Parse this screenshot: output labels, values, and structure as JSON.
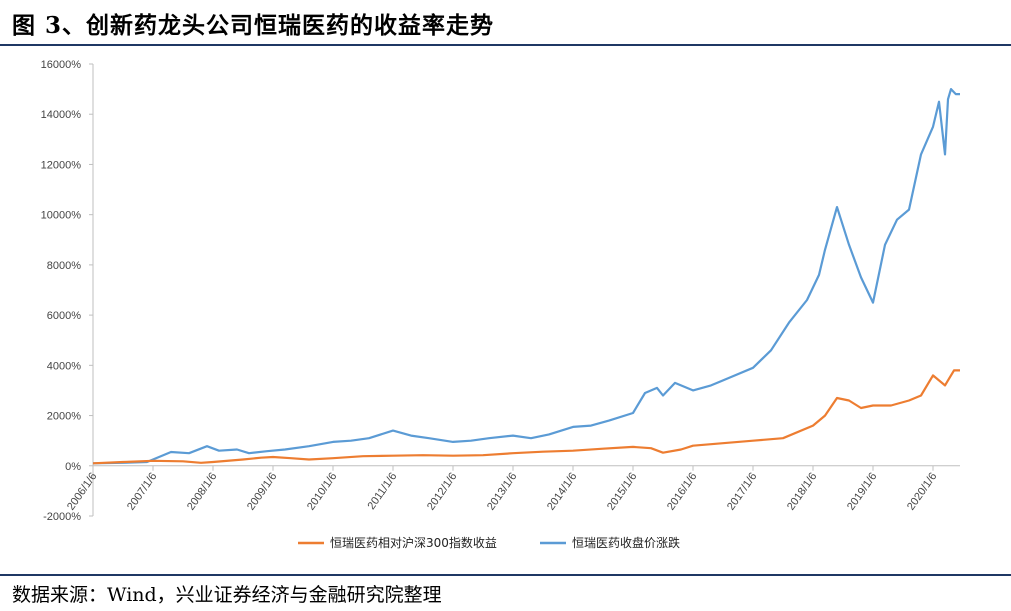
{
  "figure_title": "图 3、创新药龙头公司恒瑞医药的收益率走势",
  "source_note": "数据来源：Wind，兴业证券经济与金融研究院整理",
  "chart_data": {
    "type": "line",
    "title": "",
    "xlabel": "",
    "ylabel": "",
    "ylim": [
      -2000,
      16000
    ],
    "y_ticks": [
      -2000,
      0,
      2000,
      4000,
      6000,
      8000,
      10000,
      12000,
      14000,
      16000
    ],
    "y_tick_labels": [
      "-2000%",
      "0%",
      "2000%",
      "4000%",
      "6000%",
      "8000%",
      "10000%",
      "12000%",
      "14000%",
      "16000%"
    ],
    "x_tick_labels": [
      "2006/1/6",
      "2007/1/6",
      "2008/1/6",
      "2009/1/6",
      "2010/1/6",
      "2011/1/6",
      "2012/1/6",
      "2013/1/6",
      "2014/1/6",
      "2015/1/6",
      "2016/1/6",
      "2017/1/6",
      "2018/1/6",
      "2019/1/6",
      "2020/1/6"
    ],
    "xlim": [
      2006.0,
      2020.45
    ],
    "legend_position": "bottom",
    "grid": false,
    "series": [
      {
        "name": "恒瑞医药相对沪深300指数收益",
        "color": "#ed7d31",
        "x": [
          2006.0,
          2006.5,
          2007.0,
          2007.5,
          2007.8,
          2008.0,
          2008.5,
          2008.8,
          2009.0,
          2009.3,
          2009.6,
          2010.0,
          2010.5,
          2011.0,
          2011.5,
          2012.0,
          2012.5,
          2013.0,
          2013.5,
          2014.0,
          2014.5,
          2015.0,
          2015.3,
          2015.5,
          2015.8,
          2016.0,
          2016.5,
          2017.0,
          2017.5,
          2018.0,
          2018.2,
          2018.4,
          2018.6,
          2018.8,
          2019.0,
          2019.3,
          2019.6,
          2019.8,
          2020.0,
          2020.2,
          2020.35,
          2020.45
        ],
        "y": [
          100,
          150,
          200,
          180,
          120,
          150,
          250,
          320,
          350,
          300,
          250,
          300,
          380,
          400,
          420,
          400,
          420,
          500,
          560,
          600,
          680,
          750,
          700,
          520,
          650,
          800,
          900,
          1000,
          1100,
          1600,
          2000,
          2700,
          2600,
          2300,
          2400,
          2400,
          2600,
          2800,
          3600,
          3200,
          3800,
          3800
        ]
      },
      {
        "name": "恒瑞医药收盘价涨跌",
        "color": "#5b9bd5",
        "x": [
          2006.0,
          2006.5,
          2006.9,
          2007.1,
          2007.3,
          2007.6,
          2007.9,
          2008.1,
          2008.4,
          2008.6,
          2008.9,
          2009.2,
          2009.6,
          2010.0,
          2010.3,
          2010.6,
          2011.0,
          2011.3,
          2011.6,
          2012.0,
          2012.3,
          2012.6,
          2013.0,
          2013.3,
          2013.6,
          2014.0,
          2014.3,
          2014.6,
          2015.0,
          2015.2,
          2015.4,
          2015.5,
          2015.7,
          2016.0,
          2016.3,
          2016.6,
          2017.0,
          2017.3,
          2017.6,
          2017.9,
          2018.1,
          2018.2,
          2018.4,
          2018.6,
          2018.8,
          2019.0,
          2019.2,
          2019.4,
          2019.6,
          2019.8,
          2020.0,
          2020.1,
          2020.2,
          2020.25,
          2020.3,
          2020.38,
          2020.45
        ],
        "y": [
          100,
          120,
          150,
          350,
          550,
          500,
          780,
          600,
          650,
          500,
          580,
          650,
          780,
          950,
          1000,
          1100,
          1400,
          1200,
          1100,
          950,
          1000,
          1100,
          1200,
          1100,
          1250,
          1550,
          1600,
          1800,
          2100,
          2900,
          3100,
          2800,
          3300,
          3000,
          3200,
          3500,
          3900,
          4600,
          5700,
          6600,
          7600,
          8600,
          10300,
          8800,
          7500,
          6500,
          8800,
          9800,
          10200,
          12400,
          13500,
          14500,
          12400,
          14600,
          15000,
          14800,
          14800
        ]
      }
    ]
  }
}
